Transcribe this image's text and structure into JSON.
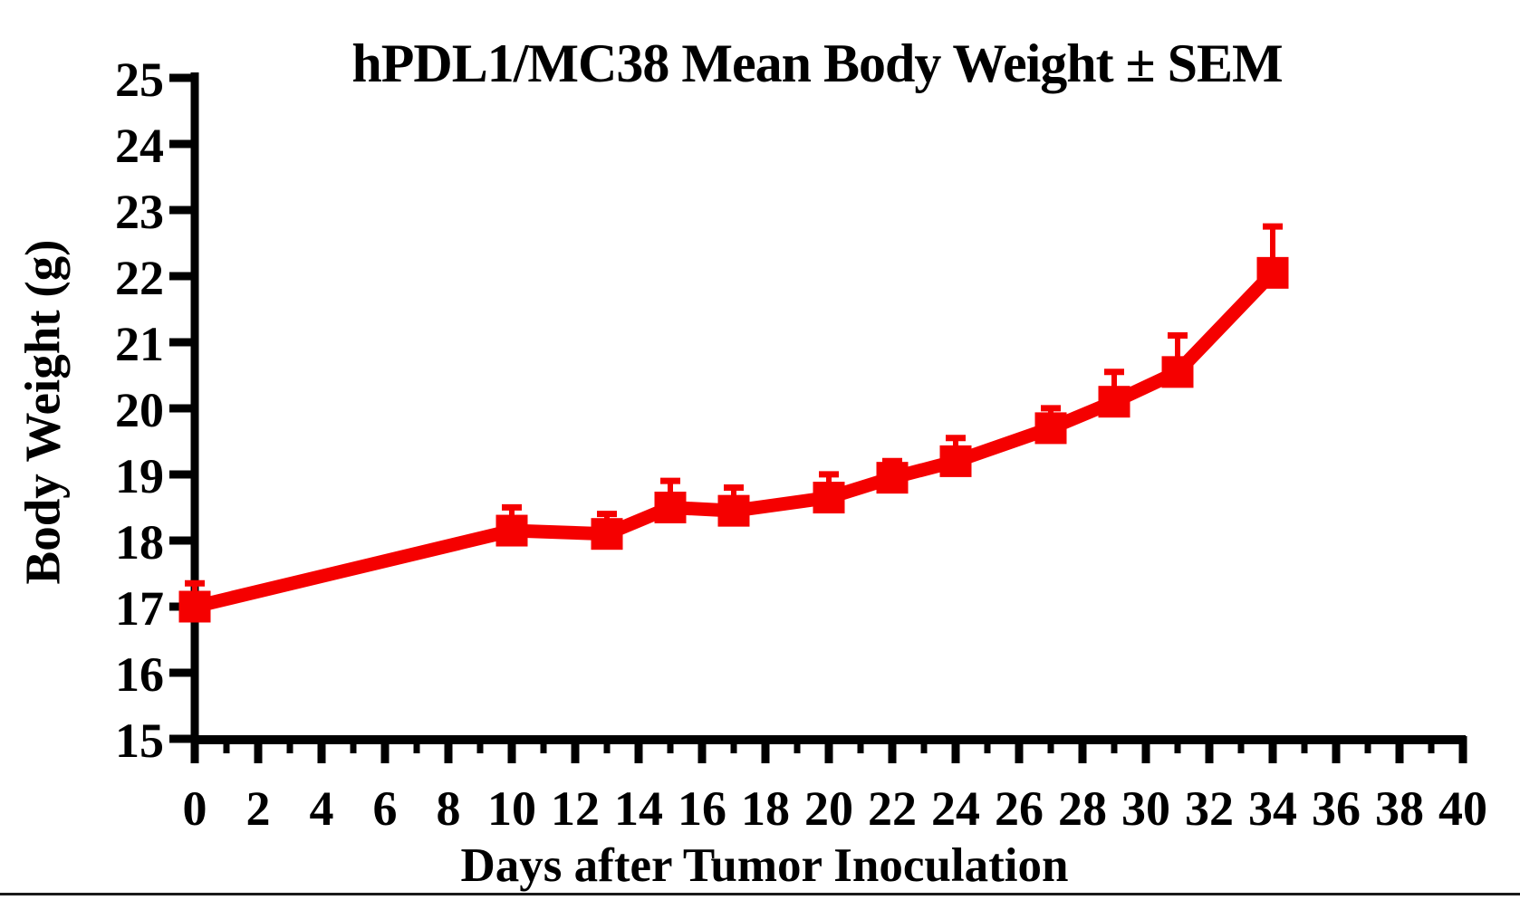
{
  "colors": {
    "series": "#f50000",
    "axis": "#000000",
    "text": "#000000",
    "background": "#ffffff"
  },
  "chart_data": {
    "type": "line",
    "title": "hPDL1/MC38 Mean Body Weight ± SEM",
    "xlabel": "Days after Tumor Inoculation",
    "ylabel": "Body Weight (g)",
    "x": [
      0,
      10,
      13,
      15,
      17,
      20,
      22,
      24,
      27,
      29,
      31,
      34
    ],
    "series": [
      {
        "name": "hPDL1/MC38 mean body weight",
        "values": [
          17.0,
          18.15,
          18.1,
          18.5,
          18.45,
          18.65,
          18.95,
          19.2,
          19.7,
          20.1,
          20.55,
          22.05
        ],
        "sem": [
          0.4,
          0.4,
          0.35,
          0.45,
          0.4,
          0.4,
          0.3,
          0.4,
          0.35,
          0.5,
          0.6,
          0.75
        ],
        "marker": "square",
        "color": "#f50000"
      }
    ],
    "error_bars": "upper_only",
    "xlim": [
      0,
      40
    ],
    "ylim": [
      15,
      25
    ],
    "x_major_tick_step": 2,
    "x_minor_tick_step": 1,
    "y_tick_step": 1,
    "x_tick_labels": [
      "0",
      "2",
      "4",
      "6",
      "8",
      "10",
      "12",
      "14",
      "16",
      "18",
      "20",
      "22",
      "24",
      "26",
      "28",
      "30",
      "32",
      "34",
      "36",
      "38",
      "40"
    ],
    "y_tick_labels": [
      "15",
      "16",
      "17",
      "18",
      "19",
      "20",
      "21",
      "22",
      "23",
      "24",
      "25"
    ],
    "grid": false,
    "legend_position": "none"
  }
}
